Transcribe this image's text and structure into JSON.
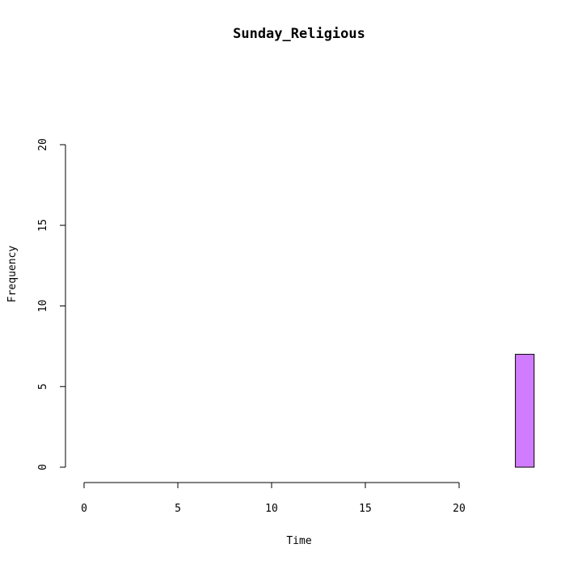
{
  "chart_data": {
    "type": "bar",
    "title": "Sunday_Religious",
    "xlabel": "Time",
    "ylabel": "Frequency",
    "xlim": [
      0,
      24
    ],
    "ylim": [
      0,
      20
    ],
    "x_ticks": [
      "0",
      "5",
      "10",
      "15",
      "20"
    ],
    "y_ticks": [
      "0",
      "5",
      "10",
      "15",
      "20"
    ],
    "bins": [
      {
        "start": 0,
        "end": 1,
        "count": 0
      },
      {
        "start": 1,
        "end": 2,
        "count": 0
      },
      {
        "start": 2,
        "end": 3,
        "count": 0
      },
      {
        "start": 3,
        "end": 4,
        "count": 0
      },
      {
        "start": 4,
        "end": 5,
        "count": 0
      },
      {
        "start": 5,
        "end": 6,
        "count": 0
      },
      {
        "start": 6,
        "end": 7,
        "count": 0
      },
      {
        "start": 7,
        "end": 8,
        "count": 0
      },
      {
        "start": 8,
        "end": 9,
        "count": 0
      },
      {
        "start": 9,
        "end": 10,
        "count": 0
      },
      {
        "start": 10,
        "end": 11,
        "count": 0
      },
      {
        "start": 11,
        "end": 12,
        "count": 0
      },
      {
        "start": 12,
        "end": 13,
        "count": 0
      },
      {
        "start": 13,
        "end": 14,
        "count": 0
      },
      {
        "start": 14,
        "end": 15,
        "count": 0
      },
      {
        "start": 15,
        "end": 16,
        "count": 0
      },
      {
        "start": 16,
        "end": 17,
        "count": 0
      },
      {
        "start": 17,
        "end": 18,
        "count": 0
      },
      {
        "start": 18,
        "end": 19,
        "count": 0
      },
      {
        "start": 19,
        "end": 20,
        "count": 0
      },
      {
        "start": 20,
        "end": 21,
        "count": 0
      },
      {
        "start": 21,
        "end": 22,
        "count": 0
      },
      {
        "start": 22,
        "end": 23,
        "count": 0
      },
      {
        "start": 23,
        "end": 24,
        "count": 7
      }
    ],
    "bar_color": "#d17cff",
    "grid": false,
    "legend": "none"
  }
}
